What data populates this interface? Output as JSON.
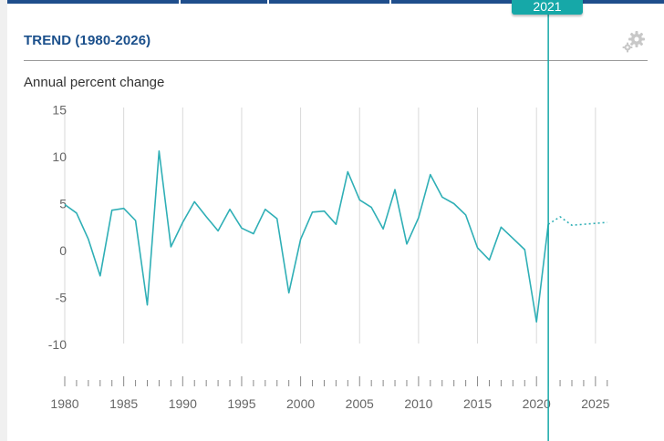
{
  "panel": {
    "title": "TREND (1980-2026)",
    "settings_icon": "gear-icon",
    "subtitle": "Annual percent change",
    "selected_year_label": "2021"
  },
  "colors": {
    "title": "#1a4f8b",
    "line": "#2fafb6",
    "marker": "#16a8a8",
    "grid": "#d9d9d9",
    "axis_text": "#666666"
  },
  "chart_data": {
    "type": "line",
    "title": "TREND (1980-2026)",
    "ylabel": "Annual percent change",
    "xlabel": "",
    "xlim": [
      1980,
      2026
    ],
    "ylim": [
      -10,
      15
    ],
    "y_ticks": [
      15,
      10,
      5,
      0,
      -5,
      -10
    ],
    "x_ticks": [
      1980,
      1985,
      1990,
      1995,
      2000,
      2005,
      2010,
      2015,
      2020,
      2025
    ],
    "grid": "vertical",
    "marker_year": 2021,
    "series": [
      {
        "style": "solid",
        "x": [
          1980,
          1981,
          1982,
          1983,
          1984,
          1985,
          1986,
          1987,
          1988,
          1989,
          1990,
          1991,
          1992,
          1993,
          1994,
          1995,
          1996,
          1997,
          1998,
          1999,
          2000,
          2001,
          2002,
          2003,
          2004,
          2005,
          2006,
          2007,
          2008,
          2009,
          2010,
          2011,
          2012,
          2013,
          2014,
          2015,
          2016,
          2017,
          2018,
          2019,
          2020,
          2021
        ],
        "y": [
          4.9,
          4.0,
          1.2,
          -2.7,
          4.3,
          4.5,
          3.2,
          -5.8,
          10.6,
          0.4,
          3.0,
          5.2,
          3.6,
          2.1,
          4.4,
          2.4,
          1.8,
          4.4,
          3.4,
          -4.5,
          1.2,
          4.1,
          4.2,
          2.8,
          8.4,
          5.4,
          4.6,
          2.3,
          6.5,
          0.7,
          3.5,
          8.1,
          5.7,
          5.0,
          3.8,
          0.3,
          -1.0,
          2.5,
          1.3,
          0.1,
          -7.6,
          2.8
        ]
      },
      {
        "style": "dotted",
        "x": [
          2021,
          2022,
          2023,
          2024,
          2025,
          2026
        ],
        "y": [
          2.8,
          3.6,
          2.7,
          2.8,
          2.9,
          3.0
        ]
      }
    ]
  }
}
